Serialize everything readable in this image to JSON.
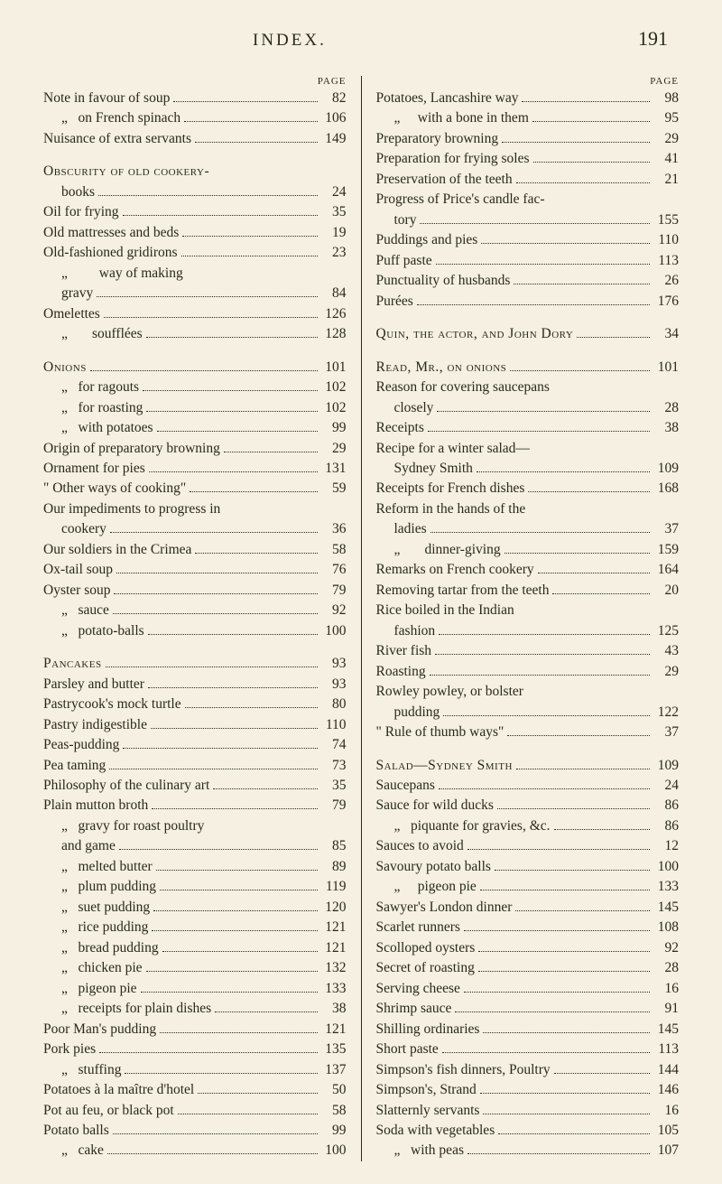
{
  "header": {
    "title": "INDEX.",
    "pageNumber": "191"
  },
  "columnLabel": "PAGE",
  "leftColumn": [
    {
      "text": "Note in favour of soup",
      "page": "82",
      "headword": false
    },
    {
      "text": "„   on French spinach",
      "page": "106",
      "sub": 1
    },
    {
      "text": "Nuisance of extra servants",
      "page": "149"
    },
    {
      "break": true
    },
    {
      "text": "Obscurity of old cookery-",
      "headword": true,
      "noPageLine": true
    },
    {
      "text": "books",
      "page": "24",
      "sub": 1
    },
    {
      "text": "Oil for frying",
      "page": "35"
    },
    {
      "text": "Old mattresses and beds",
      "page": "19"
    },
    {
      "text": "Old-fashioned gridirons",
      "page": "23"
    },
    {
      "text": "„         way of making",
      "sub": 1,
      "noPageLine": true
    },
    {
      "text": "gravy",
      "page": "84",
      "sub": 1
    },
    {
      "text": "Omelettes",
      "page": "126"
    },
    {
      "text": "„       soufflées",
      "page": "128",
      "sub": 1
    },
    {
      "break": true
    },
    {
      "text": "Onions",
      "page": "101",
      "headword": true
    },
    {
      "text": "„   for ragouts",
      "page": "102",
      "sub": 1
    },
    {
      "text": "„   for roasting",
      "page": "102",
      "sub": 1
    },
    {
      "text": "„   with potatoes",
      "page": "99",
      "sub": 1
    },
    {
      "text": "Origin of preparatory browning",
      "page": "29"
    },
    {
      "text": "Ornament for pies",
      "page": "131"
    },
    {
      "text": "\" Other ways of cooking\"",
      "page": "59"
    },
    {
      "text": "Our impediments to progress in",
      "noPageLine": true
    },
    {
      "text": "cookery",
      "page": "36",
      "sub": 1
    },
    {
      "text": "Our soldiers in the Crimea",
      "page": "58"
    },
    {
      "text": "Ox-tail soup",
      "page": "76"
    },
    {
      "text": "Oyster soup",
      "page": "79"
    },
    {
      "text": "„   sauce",
      "page": "92",
      "sub": 1
    },
    {
      "text": "„   potato-balls",
      "page": "100",
      "sub": 1
    },
    {
      "break": true
    },
    {
      "text": "Pancakes",
      "page": "93",
      "headword": true
    },
    {
      "text": "Parsley and butter",
      "page": "93"
    },
    {
      "text": "Pastrycook's mock turtle",
      "page": "80"
    },
    {
      "text": "Pastry indigestible",
      "page": "110"
    },
    {
      "text": "Peas-pudding",
      "page": "74"
    },
    {
      "text": "Pea taming",
      "page": "73"
    },
    {
      "text": "Philosophy of the culinary art",
      "page": "35"
    },
    {
      "text": "Plain mutton broth",
      "page": "79"
    },
    {
      "text": "„   gravy for roast poultry",
      "sub": 1,
      "noPageLine": true
    },
    {
      "text": "and game",
      "page": "85",
      "sub": 1
    },
    {
      "text": "„   melted butter",
      "page": "89",
      "sub": 1
    },
    {
      "text": "„   plum pudding",
      "page": "119",
      "sub": 1
    },
    {
      "text": "„   suet pudding",
      "page": "120",
      "sub": 1
    },
    {
      "text": "„   rice pudding",
      "page": "121",
      "sub": 1
    },
    {
      "text": "„   bread pudding",
      "page": "121",
      "sub": 1
    },
    {
      "text": "„   chicken pie",
      "page": "132",
      "sub": 1
    },
    {
      "text": "„   pigeon pie",
      "page": "133",
      "sub": 1
    },
    {
      "text": "„   receipts for plain dishes",
      "page": "38",
      "sub": 1
    },
    {
      "text": "Poor Man's pudding",
      "page": "121"
    },
    {
      "text": "Pork pies",
      "page": "135"
    },
    {
      "text": "„   stuffing",
      "page": "137",
      "sub": 1
    },
    {
      "text": "Potatoes à la maître d'hotel",
      "page": "50"
    },
    {
      "text": "Pot au feu, or black pot",
      "page": "58"
    },
    {
      "text": "Potato balls",
      "page": "99"
    },
    {
      "text": "„   cake",
      "page": "100",
      "sub": 1
    }
  ],
  "rightColumn": [
    {
      "text": "Potatoes, Lancashire way",
      "page": "98"
    },
    {
      "text": "„     with a bone in them",
      "page": "95",
      "sub": 1
    },
    {
      "text": "Preparatory browning",
      "page": "29"
    },
    {
      "text": "Preparation for frying soles",
      "page": "41"
    },
    {
      "text": "Preservation of the teeth",
      "page": "21"
    },
    {
      "text": "Progress of Price's candle fac-",
      "noPageLine": true
    },
    {
      "text": "tory",
      "page": "155",
      "sub": 1
    },
    {
      "text": "Puddings and pies",
      "page": "110"
    },
    {
      "text": "Puff paste",
      "page": "113"
    },
    {
      "text": "Punctuality of husbands",
      "page": "26"
    },
    {
      "text": "Purées",
      "page": "176"
    },
    {
      "break": true
    },
    {
      "text": "Quin, the actor, and John Dory",
      "page": "34",
      "headword": true
    },
    {
      "break": true
    },
    {
      "text": "Read, Mr., on onions",
      "page": "101",
      "headword": true
    },
    {
      "text": "Reason for covering saucepans",
      "noPageLine": true
    },
    {
      "text": "closely",
      "page": "28",
      "sub": 1
    },
    {
      "text": "Receipts",
      "page": "38"
    },
    {
      "text": "Recipe for a winter salad—",
      "noPageLine": true
    },
    {
      "text": "Sydney Smith",
      "page": "109",
      "sub": 1
    },
    {
      "text": "Receipts for French dishes",
      "page": "168"
    },
    {
      "text": "Reform in the hands of the",
      "noPageLine": true
    },
    {
      "text": "ladies",
      "page": "37",
      "sub": 1
    },
    {
      "text": "„       dinner-giving",
      "page": "159",
      "sub": 1
    },
    {
      "text": "Remarks on French cookery",
      "page": "164"
    },
    {
      "text": "Removing tartar from the teeth",
      "page": "20"
    },
    {
      "text": "Rice boiled in the Indian",
      "noPageLine": true
    },
    {
      "text": "fashion",
      "page": "125",
      "sub": 1
    },
    {
      "text": "River fish",
      "page": "43"
    },
    {
      "text": "Roasting",
      "page": "29"
    },
    {
      "text": "Rowley powley, or bolster",
      "noPageLine": true
    },
    {
      "text": "pudding",
      "page": "122",
      "sub": 1
    },
    {
      "text": "\" Rule of thumb ways\"",
      "page": "37"
    },
    {
      "break": true
    },
    {
      "text": "Salad—Sydney Smith",
      "page": "109",
      "headword": true
    },
    {
      "text": "Saucepans",
      "page": "24"
    },
    {
      "text": "Sauce for wild ducks",
      "page": "86"
    },
    {
      "text": "„   piquante for gravies, &c.",
      "page": "86",
      "sub": 1
    },
    {
      "text": "Sauces to avoid",
      "page": "12"
    },
    {
      "text": "Savoury potato balls",
      "page": "100"
    },
    {
      "text": "„     pigeon pie",
      "page": "133",
      "sub": 1
    },
    {
      "text": "Sawyer's London dinner",
      "page": "145"
    },
    {
      "text": "Scarlet runners",
      "page": "108"
    },
    {
      "text": "Scolloped oysters",
      "page": "92"
    },
    {
      "text": "Secret of roasting",
      "page": "28"
    },
    {
      "text": "Serving cheese",
      "page": "16"
    },
    {
      "text": "Shrimp sauce",
      "page": "91"
    },
    {
      "text": "Shilling ordinaries",
      "page": "145"
    },
    {
      "text": "Short paste",
      "page": "113"
    },
    {
      "text": "Simpson's fish dinners, Poultry",
      "page": "144"
    },
    {
      "text": "Simpson's, Strand",
      "page": "146"
    },
    {
      "text": "Slatternly servants",
      "page": "16"
    },
    {
      "text": "Soda with vegetables",
      "page": "105"
    },
    {
      "text": "„   with peas",
      "page": "107",
      "sub": 1
    }
  ]
}
